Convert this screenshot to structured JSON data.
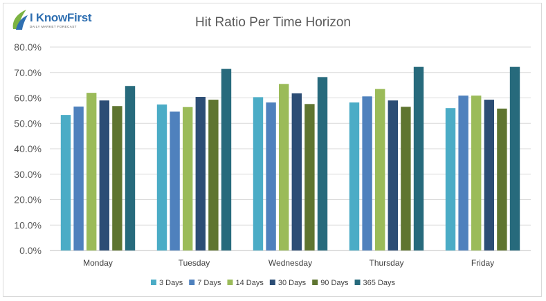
{
  "brand": {
    "logo_text": "I KnowFirst",
    "logo_tagline": "DAILY MARKET FORECAST",
    "colors": {
      "leaf_green": "#7cb342",
      "leaf_blue": "#2f6fb1"
    }
  },
  "chart_data": {
    "type": "bar",
    "title": "Hit Ratio Per Time Horizon",
    "xlabel": "",
    "ylabel": "",
    "categories": [
      "Monday",
      "Tuesday",
      "Wednesday",
      "Thursday",
      "Friday"
    ],
    "ylim": [
      0,
      80
    ],
    "yticks": [
      "0.0%",
      "10.0%",
      "20.0%",
      "30.0%",
      "40.0%",
      "50.0%",
      "60.0%",
      "70.0%",
      "80.0%"
    ],
    "grid": true,
    "legend_position": "bottom",
    "series": [
      {
        "name": "3 Days",
        "color": "#4bacc6",
        "values": [
          53.3,
          57.4,
          60.3,
          58.2,
          56.0
        ]
      },
      {
        "name": "7 Days",
        "color": "#4f81bd",
        "values": [
          56.6,
          54.6,
          58.2,
          60.6,
          60.9
        ]
      },
      {
        "name": "14 Days",
        "color": "#9bbb59",
        "values": [
          62.0,
          56.4,
          65.5,
          63.5,
          60.9
        ]
      },
      {
        "name": "30 Days",
        "color": "#2c4d75",
        "values": [
          59.0,
          60.4,
          61.8,
          59.0,
          59.3
        ]
      },
      {
        "name": "90 Days",
        "color": "#5f7530",
        "values": [
          56.8,
          59.3,
          57.6,
          56.5,
          55.8
        ]
      },
      {
        "name": "365 Days",
        "color": "#276a7c",
        "values": [
          64.7,
          71.4,
          68.2,
          72.2,
          72.2
        ]
      }
    ]
  }
}
